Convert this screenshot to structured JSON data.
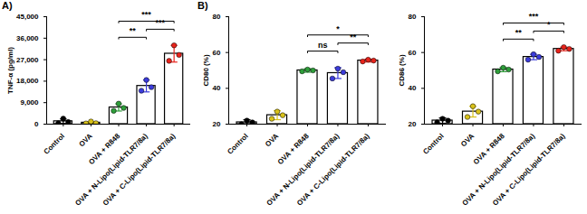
{
  "chart_data": [
    {
      "type": "bar",
      "panel": "A)",
      "y_label": "TNF-α (pg/ml)",
      "marker": "circle",
      "categories": [
        "Control",
        "OVA",
        "OVA + R848",
        "OVA + N-Lipo(Lipid-TLR7/8a)",
        "OVA + C-Lipo(Lipid-TLR7/8a)"
      ],
      "values": [
        1200,
        600,
        7000,
        16000,
        29500
      ],
      "errors": [
        1000,
        500,
        1500,
        2500,
        3500
      ],
      "points": [
        [
          400,
          2300,
          900
        ],
        [
          300,
          1100,
          400
        ],
        [
          5600,
          8600,
          6800
        ],
        [
          14000,
          18500,
          15500
        ],
        [
          26500,
          33000,
          29000
        ]
      ],
      "colors": [
        "#000000",
        "#d9c21a",
        "#2e9e3a",
        "#3b3bdb",
        "#e8231b"
      ],
      "ylim": [
        0,
        45000
      ],
      "yticks": [
        0,
        9000,
        18000,
        27000,
        36000,
        45000
      ],
      "comparisons": [
        {
          "from": "OVA + R848",
          "to": "OVA + N-Lipo(Lipid-TLR7/8a)",
          "label": "**"
        },
        {
          "from": "OVA + N-Lipo(Lipid-TLR7/8a)",
          "to": "OVA + C-Lipo(Lipid-TLR7/8a)",
          "label": "***"
        },
        {
          "from": "OVA + R848",
          "to": "OVA + C-Lipo(Lipid-TLR7/8a)",
          "label": "***"
        }
      ]
    },
    {
      "type": "bar",
      "panel": "B)",
      "y_label": "CD80 (%)",
      "marker": "circle",
      "categories": [
        "Control",
        "OVA",
        "OVA + R848",
        "OVA + N-Lipo(Lipid-TLR7/8a)",
        "OVA + C-Lipo(Lipid-TLR7/8a)"
      ],
      "values": [
        21,
        25,
        50,
        48.5,
        55.5
      ],
      "errors": [
        1.5,
        2.5,
        1,
        3,
        0.8
      ],
      "points": [
        [
          20,
          22,
          21
        ],
        [
          23,
          27,
          25
        ],
        [
          49.5,
          50.5,
          50
        ],
        [
          45.5,
          51,
          49
        ],
        [
          55,
          56,
          55.5
        ]
      ],
      "colors": [
        "#000000",
        "#d9c21a",
        "#2e9e3a",
        "#3b3bdb",
        "#e8231b"
      ],
      "ylim": [
        20,
        80
      ],
      "yticks": [
        20,
        40,
        60,
        80
      ],
      "comparisons": [
        {
          "from": "OVA + R848",
          "to": "OVA + N-Lipo(Lipid-TLR7/8a)",
          "label": "ns"
        },
        {
          "from": "OVA + N-Lipo(Lipid-TLR7/8a)",
          "to": "OVA + C-Lipo(Lipid-TLR7/8a)",
          "label": "**"
        },
        {
          "from": "OVA + R848",
          "to": "OVA + C-Lipo(Lipid-TLR7/8a)",
          "label": "*"
        }
      ]
    },
    {
      "type": "bar",
      "y_label": "CD86 (%)",
      "marker": "circle",
      "categories": [
        "Control",
        "OVA",
        "OVA + R848",
        "OVA + N-Lipo(Lipid-TLR7/8a)",
        "OVA + C-Lipo(Lipid-TLR7/8a)"
      ],
      "values": [
        22,
        27,
        50.5,
        57.5,
        62
      ],
      "errors": [
        1.5,
        3,
        1.2,
        1.5,
        1
      ],
      "points": [
        [
          21,
          23,
          22
        ],
        [
          24,
          30,
          27
        ],
        [
          49.5,
          51.5,
          50.5
        ],
        [
          56,
          59,
          57.5
        ],
        [
          61,
          63,
          62
        ]
      ],
      "colors": [
        "#000000",
        "#d9c21a",
        "#2e9e3a",
        "#3b3bdb",
        "#e8231b"
      ],
      "ylim": [
        20,
        80
      ],
      "yticks": [
        20,
        40,
        60,
        80
      ],
      "comparisons": [
        {
          "from": "OVA + R848",
          "to": "OVA + N-Lipo(Lipid-TLR7/8a)",
          "label": "**"
        },
        {
          "from": "OVA + N-Lipo(Lipid-TLR7/8a)",
          "to": "OVA + C-Lipo(Lipid-TLR7/8a)",
          "label": "*"
        },
        {
          "from": "OVA + R848",
          "to": "OVA + C-Lipo(Lipid-TLR7/8a)",
          "label": "***"
        }
      ]
    }
  ]
}
